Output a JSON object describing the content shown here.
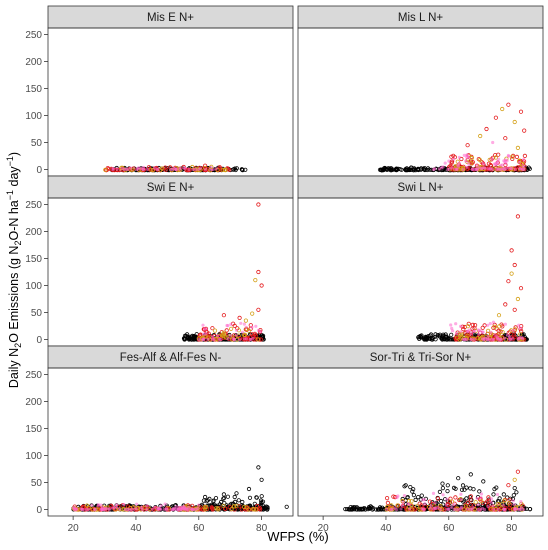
{
  "chart_data": {
    "type": "scatter",
    "xlabel": "WFPS (%)",
    "ylabel": {
      "prefix": "Daily N",
      "sub1": "2",
      "mid1": "O Emissions (g N",
      "sub2": "2",
      "mid2": "O-N ha",
      "sup1": "−1",
      "mid3": " day",
      "sup2": "−1",
      "suffix": ")"
    },
    "xlim": [
      12,
      90
    ],
    "ylim": [
      -12,
      262
    ],
    "x_ticks": [
      20,
      40,
      60,
      80
    ],
    "y_ticks": [
      0,
      50,
      100,
      150,
      200,
      250
    ],
    "grid": false,
    "colors": {
      "black": "#000000",
      "red": "#e41a1c",
      "orange": "#d4a017",
      "pink": "#ff66cc",
      "strip": "#d9d9d9"
    },
    "panels": [
      {
        "title": "Mis E N+",
        "clusters": [
          {
            "color": "black",
            "x_range": [
              32,
              75
            ],
            "y_range": [
              -1,
              3
            ],
            "count": 160
          },
          {
            "color": "red",
            "x_range": [
              30,
              70
            ],
            "y_range": [
              -1,
              5
            ],
            "count": 60
          },
          {
            "color": "orange",
            "x_range": [
              30,
              70
            ],
            "y_range": [
              -1,
              6
            ],
            "count": 30
          },
          {
            "color": "pink",
            "x_range": [
              30,
              68
            ],
            "y_range": [
              0,
              4
            ],
            "count": 40
          }
        ],
        "points": [
          {
            "color": "red",
            "x": 62,
            "y": 7
          },
          {
            "color": "orange",
            "x": 64,
            "y": 5
          }
        ]
      },
      {
        "title": "Mis L N+",
        "clusters": [
          {
            "color": "black",
            "x_range": [
              38,
              86
            ],
            "y_range": [
              -1,
              4
            ],
            "count": 230
          },
          {
            "color": "red",
            "x_range": [
              60,
              85
            ],
            "y_range": [
              0,
              30
            ],
            "count": 110
          },
          {
            "color": "orange",
            "x_range": [
              60,
              84
            ],
            "y_range": [
              0,
              25
            ],
            "count": 50
          },
          {
            "color": "pink",
            "x_range": [
              55,
              84
            ],
            "y_range": [
              0,
              35
            ],
            "count": 80
          }
        ],
        "points": [
          {
            "color": "red",
            "x": 79,
            "y": 120
          },
          {
            "color": "orange",
            "x": 77,
            "y": 112
          },
          {
            "color": "red",
            "x": 83,
            "y": 107
          },
          {
            "color": "red",
            "x": 75,
            "y": 96
          },
          {
            "color": "orange",
            "x": 81,
            "y": 88
          },
          {
            "color": "red",
            "x": 72,
            "y": 75
          },
          {
            "color": "red",
            "x": 84,
            "y": 72
          },
          {
            "color": "orange",
            "x": 70,
            "y": 62
          },
          {
            "color": "red",
            "x": 78,
            "y": 58
          },
          {
            "color": "red",
            "x": 66,
            "y": 45
          },
          {
            "color": "orange",
            "x": 82,
            "y": 40
          },
          {
            "color": "pink",
            "x": 74,
            "y": 50
          }
        ]
      },
      {
        "title": "Swi E N+",
        "clusters": [
          {
            "color": "black",
            "x_range": [
              55,
              81
            ],
            "y_range": [
              0,
              10
            ],
            "count": 200
          },
          {
            "color": "red",
            "x_range": [
              60,
              80
            ],
            "y_range": [
              0,
              30
            ],
            "count": 70
          },
          {
            "color": "orange",
            "x_range": [
              60,
              80
            ],
            "y_range": [
              0,
              20
            ],
            "count": 30
          },
          {
            "color": "pink",
            "x_range": [
              60,
              80
            ],
            "y_range": [
              0,
              30
            ],
            "count": 40
          }
        ],
        "points": [
          {
            "color": "red",
            "x": 79,
            "y": 250
          },
          {
            "color": "red",
            "x": 79,
            "y": 125
          },
          {
            "color": "orange",
            "x": 78,
            "y": 110
          },
          {
            "color": "red",
            "x": 80,
            "y": 100
          },
          {
            "color": "red",
            "x": 79,
            "y": 55
          },
          {
            "color": "orange",
            "x": 77,
            "y": 48
          },
          {
            "color": "red",
            "x": 68,
            "y": 45
          },
          {
            "color": "red",
            "x": 73,
            "y": 40
          },
          {
            "color": "orange",
            "x": 75,
            "y": 35
          }
        ]
      },
      {
        "title": "Swi L N+",
        "clusters": [
          {
            "color": "black",
            "x_range": [
              50,
              85
            ],
            "y_range": [
              0,
              10
            ],
            "count": 230
          },
          {
            "color": "red",
            "x_range": [
              62,
              84
            ],
            "y_range": [
              0,
              30
            ],
            "count": 90
          },
          {
            "color": "orange",
            "x_range": [
              62,
              84
            ],
            "y_range": [
              0,
              25
            ],
            "count": 40
          },
          {
            "color": "pink",
            "x_range": [
              60,
              84
            ],
            "y_range": [
              0,
              35
            ],
            "count": 60
          }
        ],
        "points": [
          {
            "color": "red",
            "x": 82,
            "y": 228
          },
          {
            "color": "red",
            "x": 80,
            "y": 165
          },
          {
            "color": "red",
            "x": 81,
            "y": 138
          },
          {
            "color": "orange",
            "x": 80,
            "y": 122
          },
          {
            "color": "red",
            "x": 79,
            "y": 108
          },
          {
            "color": "red",
            "x": 83,
            "y": 95
          },
          {
            "color": "orange",
            "x": 82,
            "y": 75
          },
          {
            "color": "red",
            "x": 78,
            "y": 65
          },
          {
            "color": "red",
            "x": 81,
            "y": 55
          },
          {
            "color": "orange",
            "x": 76,
            "y": 45
          }
        ]
      },
      {
        "title": "Fes-Alf & Alf-Fes N-",
        "clusters": [
          {
            "color": "black",
            "x_range": [
              20,
              82
            ],
            "y_range": [
              0,
              8
            ],
            "count": 260
          },
          {
            "color": "black",
            "x_range": [
              60,
              82
            ],
            "y_range": [
              2,
              25
            ],
            "count": 90
          },
          {
            "color": "red",
            "x_range": [
              20,
              80
            ],
            "y_range": [
              0,
              8
            ],
            "count": 100
          },
          {
            "color": "orange",
            "x_range": [
              20,
              80
            ],
            "y_range": [
              0,
              8
            ],
            "count": 60
          },
          {
            "color": "pink",
            "x_range": [
              20,
              60
            ],
            "y_range": [
              0,
              10
            ],
            "count": 90
          }
        ],
        "points": [
          {
            "color": "black",
            "x": 79,
            "y": 78
          },
          {
            "color": "black",
            "x": 80,
            "y": 55
          },
          {
            "color": "black",
            "x": 76,
            "y": 38
          },
          {
            "color": "black",
            "x": 72,
            "y": 30
          },
          {
            "color": "black",
            "x": 68,
            "y": 28
          },
          {
            "color": "black",
            "x": 88,
            "y": 5
          }
        ]
      },
      {
        "title": "Sor-Tri & Tri-Sor N+",
        "clusters": [
          {
            "color": "black",
            "x_range": [
              27,
              86
            ],
            "y_range": [
              0,
              6
            ],
            "count": 250
          },
          {
            "color": "black",
            "x_range": [
              45,
              82
            ],
            "y_range": [
              3,
              45
            ],
            "count": 150
          },
          {
            "color": "red",
            "x_range": [
              40,
              84
            ],
            "y_range": [
              0,
              25
            ],
            "count": 90
          },
          {
            "color": "orange",
            "x_range": [
              40,
              84
            ],
            "y_range": [
              0,
              20
            ],
            "count": 50
          },
          {
            "color": "pink",
            "x_range": [
              40,
              84
            ],
            "y_range": [
              0,
              30
            ],
            "count": 80
          }
        ],
        "points": [
          {
            "color": "red",
            "x": 82,
            "y": 70
          },
          {
            "color": "black",
            "x": 67,
            "y": 65
          },
          {
            "color": "black",
            "x": 63,
            "y": 58
          },
          {
            "color": "orange",
            "x": 81,
            "y": 55
          },
          {
            "color": "black",
            "x": 71,
            "y": 52
          },
          {
            "color": "black",
            "x": 58,
            "y": 48
          },
          {
            "color": "red",
            "x": 79,
            "y": 45
          }
        ]
      }
    ]
  }
}
